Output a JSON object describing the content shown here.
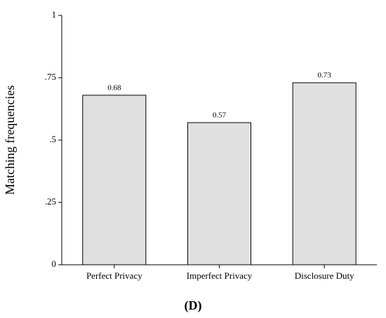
{
  "chart_data": {
    "type": "bar",
    "y_label": "Matching frequencies",
    "caption": "(D)",
    "categories": [
      "Perfect Privacy",
      "Imperfect Privacy",
      "Disclosure Duty"
    ],
    "values": [
      0.68,
      0.57,
      0.73
    ],
    "color": "#e0e0e0",
    "ylim": [
      0,
      1
    ],
    "yticks": [
      0,
      {
        "value": 0.25,
        "label": ".25"
      },
      {
        "value": 0.5,
        "label": ".5"
      },
      {
        "value": 0.75,
        "label": ".75"
      },
      1
    ]
  }
}
